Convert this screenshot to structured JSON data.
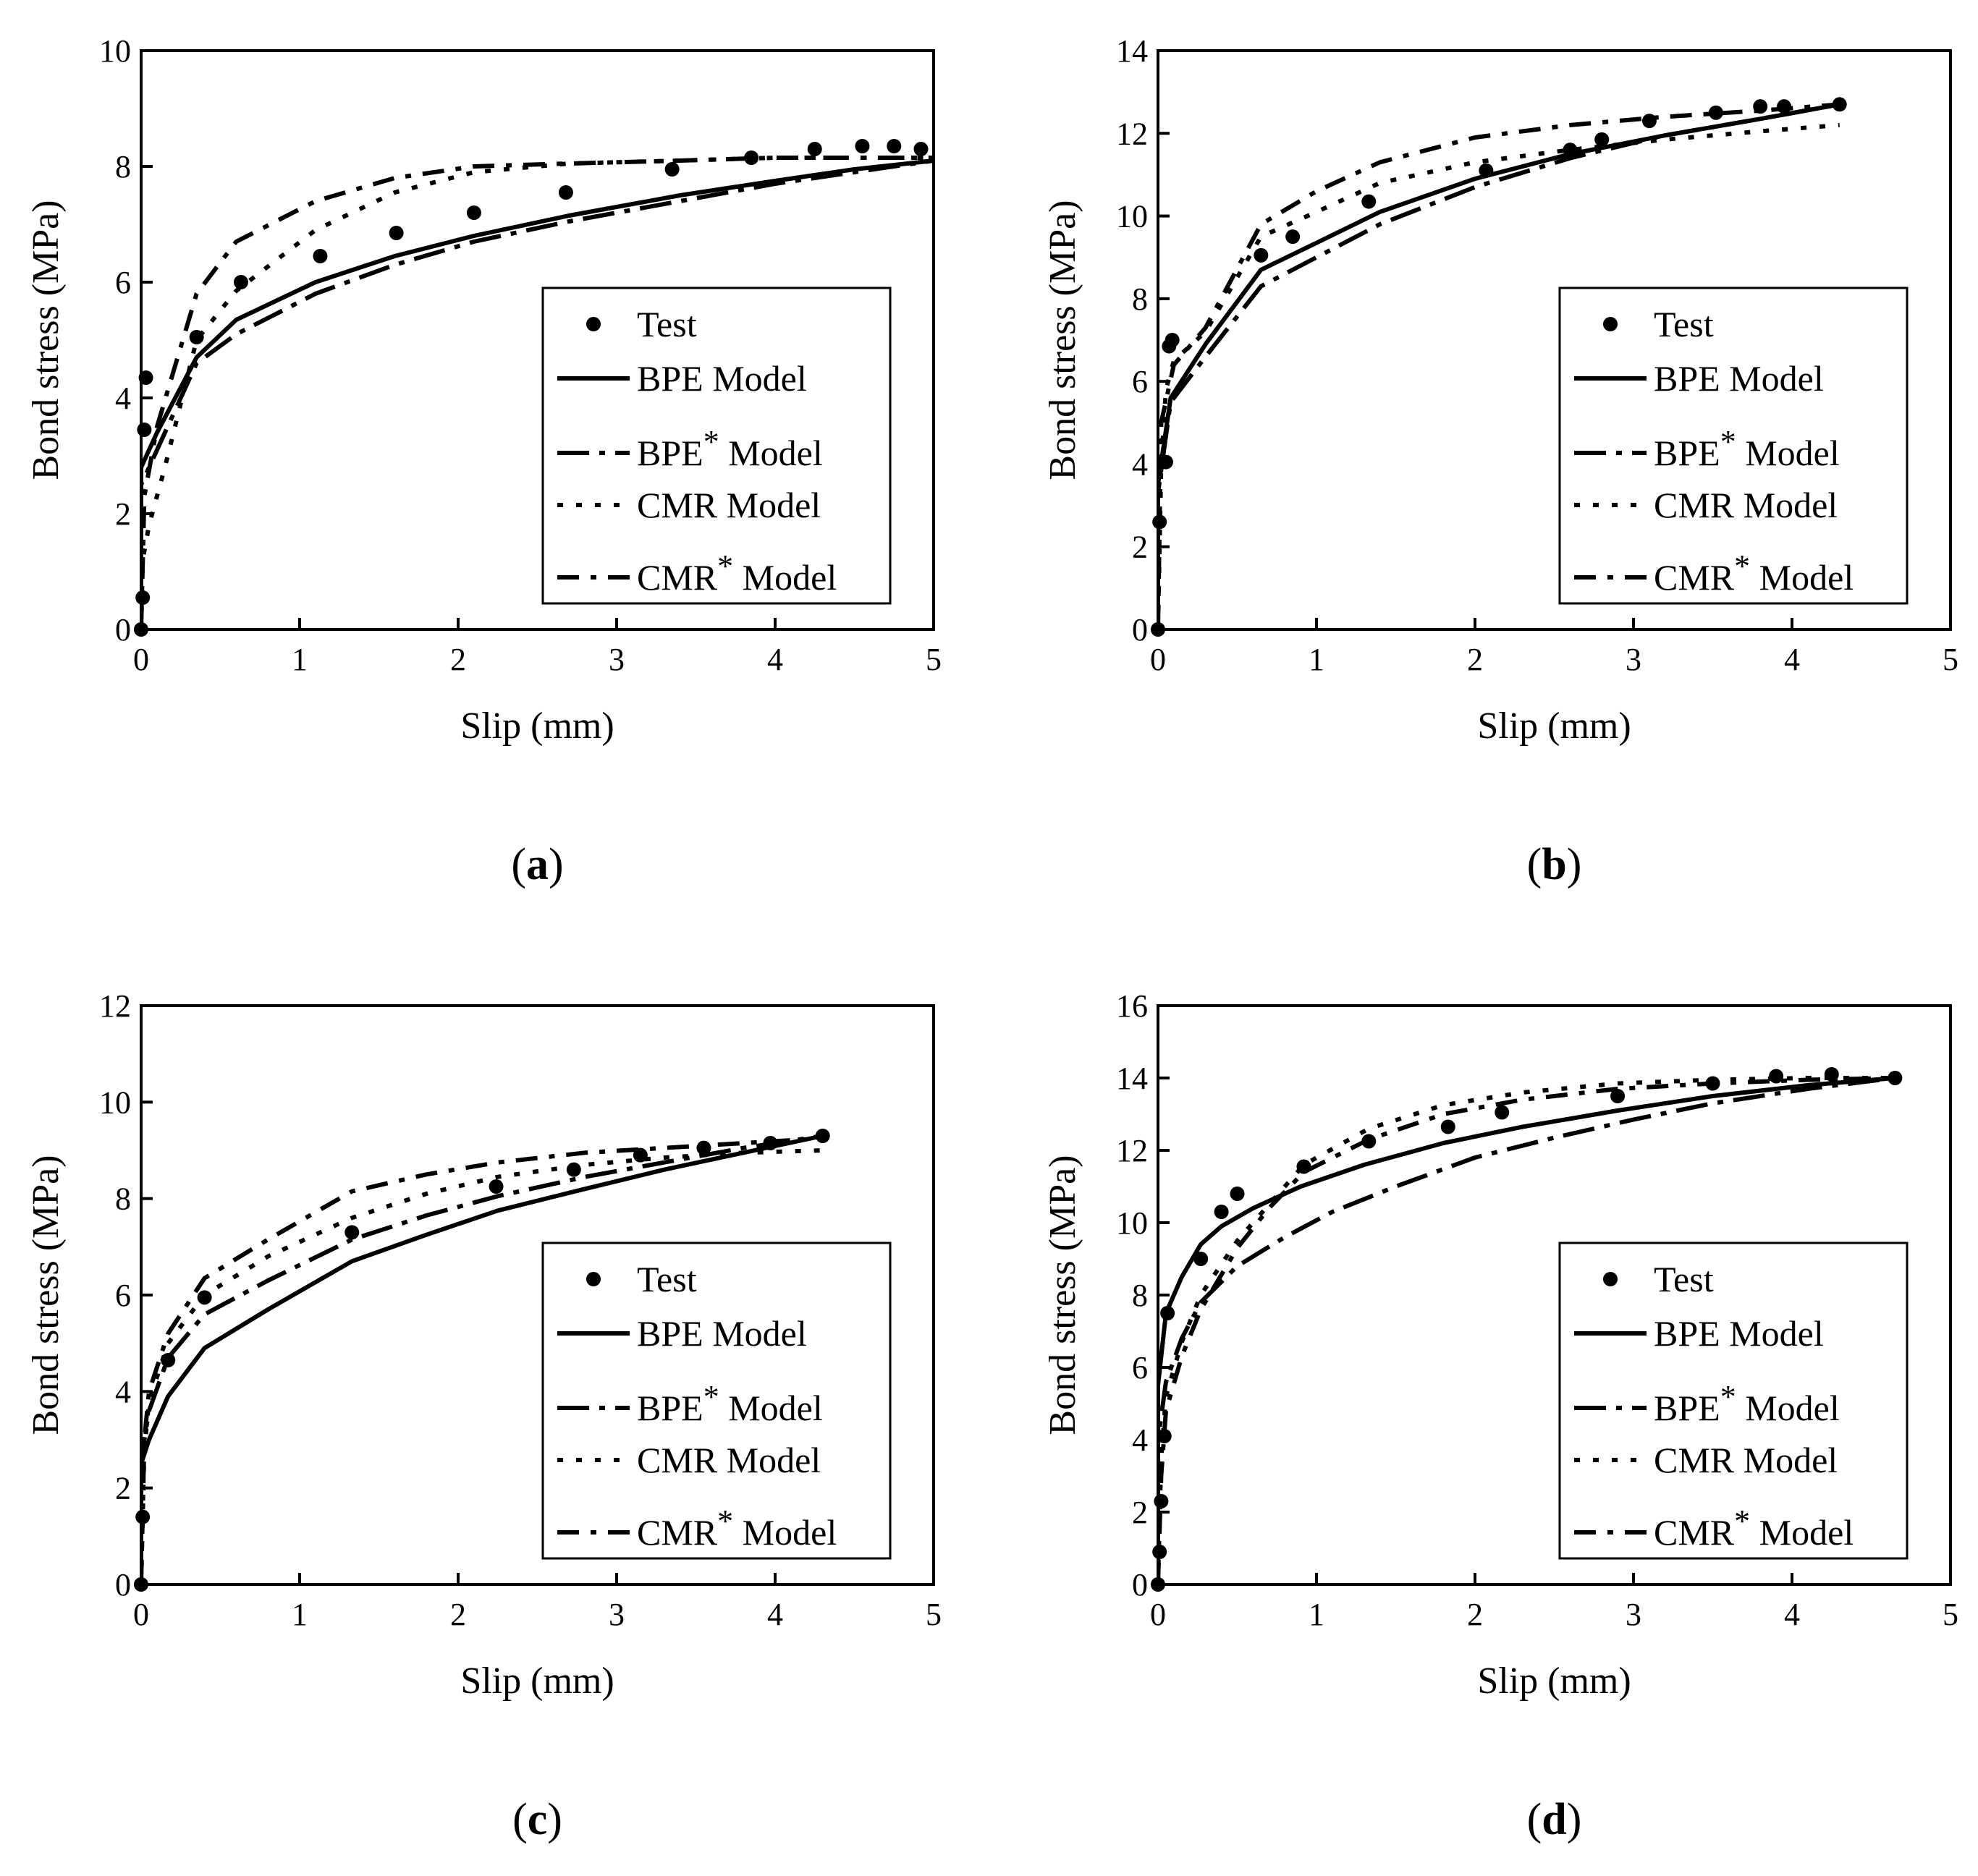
{
  "chart_data": [
    {
      "type": "line",
      "panel": "(a)",
      "panel_letter": "a",
      "xlabel": "Slip (mm)",
      "ylabel": "Bond stress (MPa)",
      "xlim": [
        0,
        5
      ],
      "ylim": [
        0,
        10
      ],
      "xticks": [
        0,
        1,
        2,
        3,
        4,
        5
      ],
      "yticks": [
        0,
        2,
        4,
        6,
        8,
        10
      ],
      "legend": [
        "Test",
        "BPE Model",
        "BPE* Model",
        "CMR Model",
        "CMR* Model"
      ],
      "test": {
        "x": [
          0.0,
          0.01,
          0.02,
          0.03,
          0.35,
          0.63,
          1.13,
          1.61,
          2.1,
          2.68,
          3.35,
          3.85,
          4.25,
          4.55,
          4.75,
          4.92
        ],
        "y": [
          0.0,
          0.55,
          3.45,
          4.35,
          5.05,
          6.0,
          6.45,
          6.85,
          7.2,
          7.55,
          7.95,
          8.15,
          8.3,
          8.35,
          8.35,
          8.3
        ]
      },
      "series": [
        {
          "name": "BPE Model",
          "x": [
            0.0,
            0.0,
            0.1,
            0.35,
            0.6,
            1.1,
            1.6,
            2.1,
            2.7,
            3.4,
            4.0,
            4.5,
            5.0
          ],
          "y": [
            0.0,
            2.8,
            3.4,
            4.7,
            5.35,
            6.0,
            6.45,
            6.8,
            7.15,
            7.5,
            7.75,
            7.95,
            8.1
          ]
        },
        {
          "name": "BPE* Model",
          "x": [
            0.0,
            0.0,
            0.1,
            0.35,
            0.6,
            1.1,
            1.6,
            2.1,
            2.7,
            3.4,
            4.0,
            4.5,
            5.0
          ],
          "y": [
            0.0,
            2.5,
            3.1,
            4.6,
            5.1,
            5.8,
            6.3,
            6.7,
            7.05,
            7.4,
            7.7,
            7.9,
            8.1
          ]
        },
        {
          "name": "CMR Model",
          "x": [
            0.0,
            0.01,
            0.05,
            0.15,
            0.35,
            0.6,
            1.1,
            1.6,
            2.1,
            2.7,
            3.4,
            4.0,
            4.5,
            5.0
          ],
          "y": [
            0.0,
            1.2,
            1.8,
            2.8,
            5.0,
            5.85,
            6.9,
            7.55,
            7.9,
            8.05,
            8.1,
            8.15,
            8.15,
            8.15
          ]
        },
        {
          "name": "CMR* Model",
          "x": [
            0.0,
            0.02,
            0.1,
            0.35,
            0.6,
            1.1,
            1.6,
            2.1,
            2.7,
            3.4,
            4.0,
            4.5,
            5.0
          ],
          "y": [
            0.0,
            2.3,
            3.5,
            5.8,
            6.7,
            7.4,
            7.8,
            8.0,
            8.05,
            8.1,
            8.15,
            8.15,
            8.15
          ]
        }
      ]
    },
    {
      "type": "line",
      "panel": "(b)",
      "panel_letter": "b",
      "xlabel": "Slip (mm)",
      "ylabel": "Bond stress (MPa)",
      "xlim": [
        0,
        5
      ],
      "ylim": [
        0,
        14
      ],
      "xticks": [
        0,
        1,
        2,
        3,
        4,
        5
      ],
      "yticks": [
        0,
        2,
        4,
        6,
        8,
        10,
        12,
        14
      ],
      "legend": [
        "Test",
        "BPE Model",
        "BPE* Model",
        "CMR Model",
        "CMR* Model"
      ],
      "test": {
        "x": [
          0.0,
          0.01,
          0.05,
          0.07,
          0.09,
          0.65,
          0.85,
          1.33,
          2.07,
          2.6,
          2.8,
          3.1,
          3.52,
          3.8,
          3.95,
          4.3
        ],
        "y": [
          0.0,
          2.6,
          4.05,
          6.85,
          7.0,
          9.05,
          9.5,
          10.35,
          11.1,
          11.6,
          11.85,
          12.3,
          12.5,
          12.65,
          12.65,
          12.7
        ]
      },
      "series": [
        {
          "name": "BPE Model",
          "x": [
            0.0,
            0.0,
            0.08,
            0.3,
            0.65,
            1.0,
            1.4,
            2.0,
            2.6,
            3.2,
            3.8,
            4.3
          ],
          "y": [
            0.0,
            3.5,
            5.6,
            6.9,
            8.7,
            9.35,
            10.1,
            10.9,
            11.5,
            11.95,
            12.35,
            12.7
          ]
        },
        {
          "name": "BPE* Model",
          "x": [
            0.0,
            0.0,
            0.08,
            0.3,
            0.65,
            1.0,
            1.4,
            2.0,
            2.6,
            3.2,
            3.8,
            4.3
          ],
          "y": [
            0.0,
            3.3,
            5.5,
            6.6,
            8.3,
            9.0,
            9.8,
            10.7,
            11.4,
            11.95,
            12.35,
            12.7
          ]
        },
        {
          "name": "CMR Model",
          "x": [
            0.0,
            0.02,
            0.05,
            0.1,
            0.3,
            0.65,
            1.0,
            1.4,
            2.0,
            2.6,
            3.2,
            3.8,
            4.3
          ],
          "y": [
            0.0,
            4.0,
            5.8,
            6.5,
            7.2,
            9.5,
            10.1,
            10.8,
            11.3,
            11.6,
            11.85,
            12.05,
            12.2
          ]
        },
        {
          "name": "CMR* Model",
          "x": [
            0.0,
            0.02,
            0.1,
            0.3,
            0.65,
            1.0,
            1.4,
            2.0,
            2.6,
            3.2,
            3.8,
            4.3
          ],
          "y": [
            0.0,
            5.0,
            6.4,
            7.3,
            9.8,
            10.6,
            11.3,
            11.9,
            12.2,
            12.4,
            12.55,
            12.7
          ]
        }
      ]
    },
    {
      "type": "line",
      "panel": "(c)",
      "panel_letter": "c",
      "xlabel": "Slip (mm)",
      "ylabel": "Bond stress (MPa)",
      "xlim": [
        0,
        5
      ],
      "ylim": [
        0,
        12
      ],
      "xticks": [
        0,
        1,
        2,
        3,
        4,
        5
      ],
      "yticks": [
        0,
        2,
        4,
        6,
        8,
        10,
        12
      ],
      "legend": [
        "Test",
        "BPE Model",
        "BPE* Model",
        "CMR Model",
        "CMR* Model"
      ],
      "test": {
        "x": [
          0.0,
          0.01,
          0.17,
          0.4,
          1.33,
          2.24,
          2.73,
          3.15,
          3.55,
          3.97,
          4.3
        ],
        "y": [
          0.0,
          1.4,
          4.65,
          5.95,
          7.3,
          8.25,
          8.6,
          8.9,
          9.05,
          9.15,
          9.3
        ]
      },
      "series": [
        {
          "name": "BPE Model",
          "x": [
            0.0,
            0.0,
            0.05,
            0.17,
            0.4,
            0.8,
            1.33,
            1.8,
            2.25,
            2.8,
            3.3,
            3.8,
            4.3
          ],
          "y": [
            0.0,
            2.5,
            3.0,
            3.9,
            4.9,
            5.7,
            6.7,
            7.25,
            7.75,
            8.2,
            8.6,
            8.95,
            9.3
          ]
        },
        {
          "name": "BPE* Model",
          "x": [
            0.0,
            0.0,
            0.05,
            0.17,
            0.4,
            0.8,
            1.33,
            1.8,
            2.25,
            2.8,
            3.3,
            3.8,
            4.3
          ],
          "y": [
            0.0,
            2.6,
            3.6,
            4.7,
            5.6,
            6.3,
            7.15,
            7.65,
            8.05,
            8.45,
            8.75,
            9.05,
            9.3
          ]
        },
        {
          "name": "CMR Model",
          "x": [
            0.0,
            0.02,
            0.05,
            0.17,
            0.4,
            0.8,
            1.33,
            1.8,
            2.25,
            2.8,
            3.3,
            3.8,
            4.3
          ],
          "y": [
            0.0,
            2.8,
            3.8,
            5.0,
            6.0,
            6.8,
            7.6,
            8.1,
            8.45,
            8.7,
            8.85,
            8.95,
            9.0
          ]
        },
        {
          "name": "CMR* Model",
          "x": [
            0.0,
            0.02,
            0.05,
            0.17,
            0.4,
            0.8,
            1.33,
            1.8,
            2.25,
            2.8,
            3.3,
            3.8,
            4.3
          ],
          "y": [
            0.0,
            3.0,
            4.0,
            5.2,
            6.35,
            7.15,
            8.15,
            8.5,
            8.75,
            8.95,
            9.05,
            9.15,
            9.25
          ]
        }
      ]
    },
    {
      "type": "line",
      "panel": "(d)",
      "panel_letter": "d",
      "xlabel": "Slip (mm)",
      "ylabel": "Bond stress (MPa)",
      "xlim": [
        0,
        5
      ],
      "ylim": [
        0,
        16
      ],
      "xticks": [
        0,
        1,
        2,
        3,
        4,
        5
      ],
      "yticks": [
        0,
        2,
        4,
        6,
        8,
        10,
        12,
        14,
        16
      ],
      "legend": [
        "Test",
        "BPE Model",
        "BPE* Model",
        "CMR Model",
        "CMR* Model"
      ],
      "test": {
        "x": [
          0.0,
          0.01,
          0.02,
          0.04,
          0.06,
          0.27,
          0.4,
          0.5,
          0.92,
          1.33,
          1.83,
          2.17,
          2.9,
          3.5,
          3.9,
          4.25,
          4.65
        ],
        "y": [
          0.0,
          0.9,
          2.3,
          4.1,
          7.5,
          9.0,
          10.3,
          10.8,
          11.55,
          12.25,
          12.65,
          13.05,
          13.5,
          13.85,
          14.05,
          14.1,
          14.0
        ]
      },
      "series": [
        {
          "name": "BPE Model",
          "x": [
            0.0,
            0.0,
            0.05,
            0.15,
            0.27,
            0.4,
            0.6,
            0.9,
            1.3,
            1.8,
            2.3,
            2.9,
            3.5,
            4.1,
            4.65
          ],
          "y": [
            0.0,
            5.5,
            7.5,
            8.5,
            9.4,
            9.9,
            10.4,
            11.0,
            11.6,
            12.2,
            12.65,
            13.1,
            13.5,
            13.8,
            14.0
          ]
        },
        {
          "name": "BPE* Model",
          "x": [
            0.0,
            0.0,
            0.05,
            0.15,
            0.27,
            0.5,
            0.8,
            1.1,
            1.5,
            2.0,
            2.5,
            3.0,
            3.5,
            4.1,
            4.65
          ],
          "y": [
            0.0,
            4.0,
            5.6,
            6.8,
            7.8,
            8.8,
            9.6,
            10.3,
            11.0,
            11.8,
            12.35,
            12.85,
            13.3,
            13.7,
            14.0
          ]
        },
        {
          "name": "CMR Model",
          "x": [
            0.0,
            0.02,
            0.05,
            0.15,
            0.27,
            0.5,
            0.7,
            0.92,
            1.33,
            1.8,
            2.3,
            2.9,
            3.5,
            4.1,
            4.65
          ],
          "y": [
            0.0,
            3.5,
            5.2,
            6.7,
            8.0,
            9.5,
            10.5,
            11.6,
            12.6,
            13.25,
            13.6,
            13.85,
            13.95,
            14.0,
            14.0
          ]
        },
        {
          "name": "CMR* Model",
          "x": [
            0.0,
            0.02,
            0.05,
            0.15,
            0.27,
            0.5,
            0.7,
            0.92,
            1.33,
            1.8,
            2.3,
            2.9,
            3.5,
            4.1,
            4.65
          ],
          "y": [
            0.0,
            3.0,
            4.8,
            6.3,
            7.6,
            9.3,
            10.4,
            11.4,
            12.3,
            13.0,
            13.4,
            13.7,
            13.85,
            13.95,
            14.0
          ]
        }
      ]
    }
  ]
}
